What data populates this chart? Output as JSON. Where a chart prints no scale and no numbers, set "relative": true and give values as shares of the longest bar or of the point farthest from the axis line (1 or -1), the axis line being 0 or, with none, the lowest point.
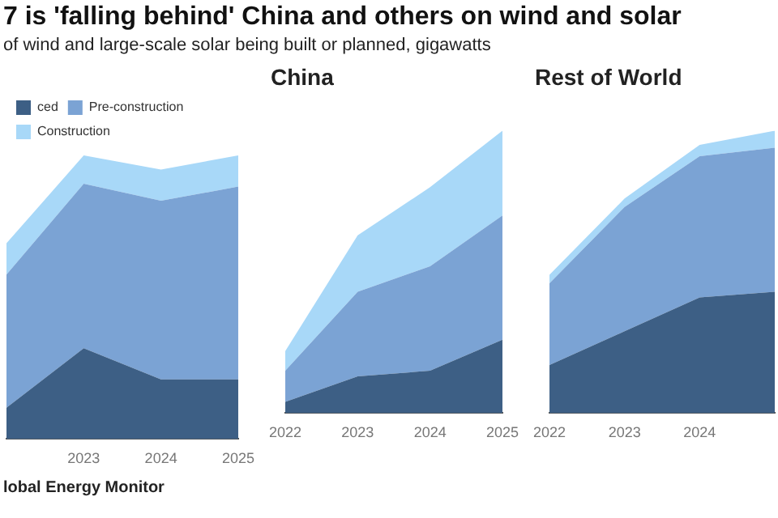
{
  "chart_data": [
    {
      "type": "area",
      "title": "7 is 'falling behind' China and others on wind and solar",
      "subtitle": "of wind and large-scale solar being built or planned, gigawatts",
      "annotations": [
        "lobal Energy Monitor"
      ],
      "relative": true,
      "stacked": true,
      "legend": "top left",
      "categories": [
        null,
        "2023",
        "2024",
        "2025"
      ],
      "series": [
        {
          "name": "ced",
          "color": "#3d5f85",
          "values": [
            0.11,
            0.32,
            0.21,
            0.21
          ]
        },
        {
          "name": "Pre-construction",
          "color": "#7ba3d4",
          "values": [
            0.47,
            0.58,
            0.63,
            0.68
          ]
        },
        {
          "name": "Construction",
          "color": "#a8d8f8",
          "values": [
            0.11,
            0.1,
            0.11,
            0.11
          ]
        }
      ]
    },
    {
      "type": "area",
      "title": "China",
      "relative": true,
      "stacked": true,
      "categories": [
        "2022",
        "2023",
        "2024",
        "2025"
      ],
      "series": [
        {
          "color": "#3d5f85",
          "values": [
            0.04,
            0.13,
            0.15,
            0.26
          ]
        },
        {
          "color": "#7ba3d4",
          "values": [
            0.11,
            0.3,
            0.37,
            0.44
          ]
        },
        {
          "color": "#a8d8f8",
          "values": [
            0.07,
            0.2,
            0.28,
            0.3
          ]
        }
      ]
    },
    {
      "type": "area",
      "title": "Rest of World",
      "relative": true,
      "stacked": true,
      "categories": [
        "2022",
        "2023",
        "2024",
        null
      ],
      "series": [
        {
          "color": "#3d5f85",
          "values": [
            0.17,
            0.29,
            0.41,
            0.43
          ]
        },
        {
          "color": "#7ba3d4",
          "values": [
            0.29,
            0.44,
            0.5,
            0.51
          ]
        },
        {
          "color": "#a8d8f8",
          "values": [
            0.03,
            0.03,
            0.04,
            0.06
          ]
        }
      ]
    }
  ]
}
